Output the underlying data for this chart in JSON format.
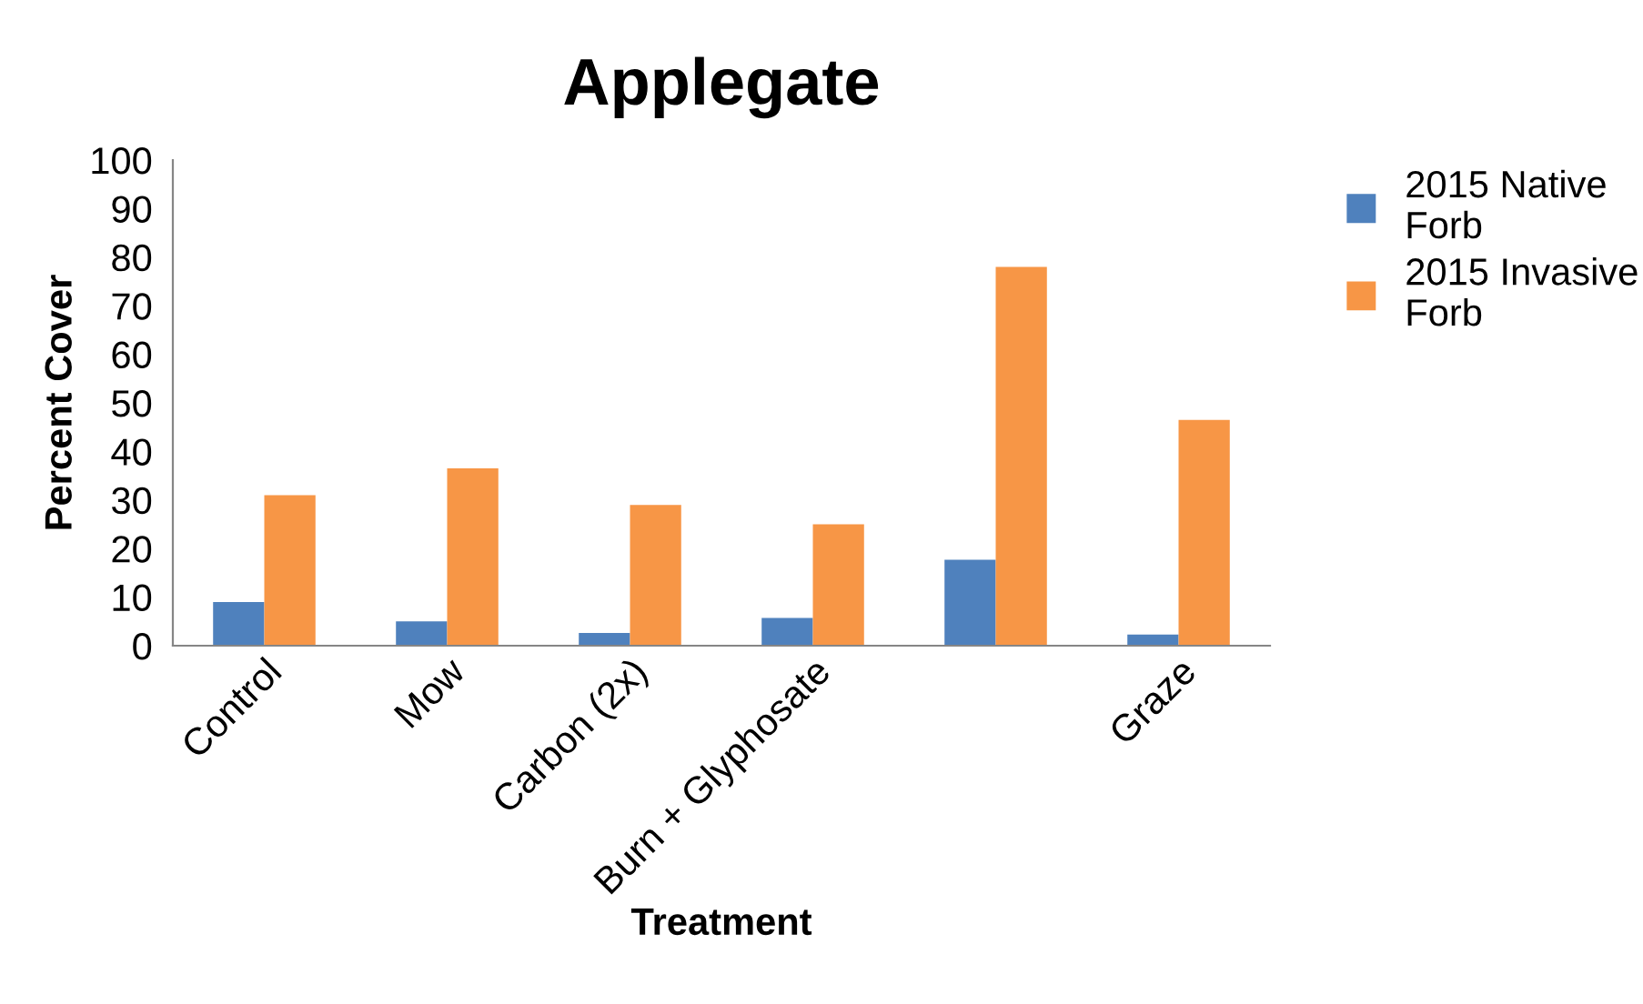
{
  "chart_data": {
    "type": "bar",
    "title": "Applegate",
    "xlabel": "Treatment",
    "ylabel": "Percent Cover",
    "categories": [
      "Control",
      "Mow",
      "Carbon (2x)",
      "Burn + Glyphosate",
      null,
      "Graze"
    ],
    "series": [
      {
        "name": "2015 Native Forb",
        "color": "#4f81bd",
        "values": [
          9,
          5,
          2.6,
          5.7,
          17.7,
          2.3
        ]
      },
      {
        "name": "2015 Invasive Forb",
        "color": "#f79646",
        "values": [
          31,
          36.5,
          29,
          25,
          78,
          46.5
        ]
      }
    ],
    "ylim": [
      0,
      100
    ],
    "yticks": [
      0,
      10,
      20,
      30,
      40,
      50,
      60,
      70,
      80,
      90,
      100
    ],
    "grid": false,
    "legend": "top right"
  }
}
